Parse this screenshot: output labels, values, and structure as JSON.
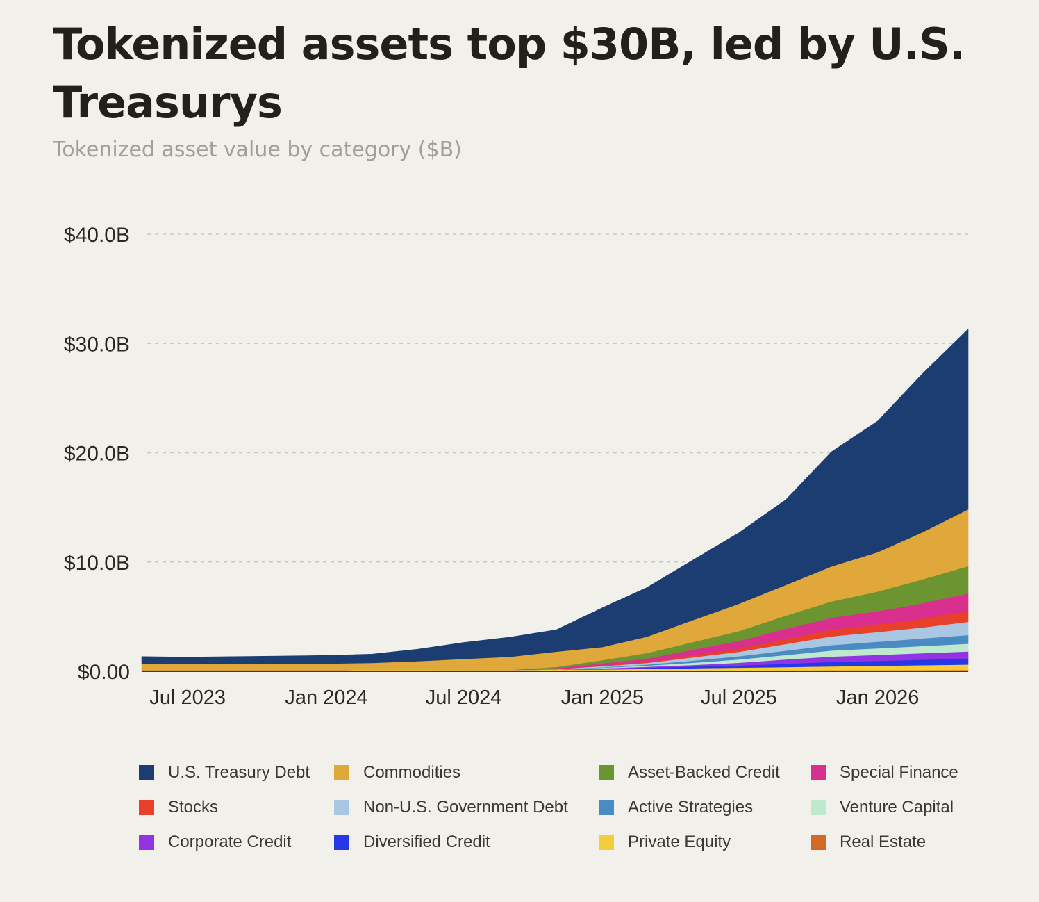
{
  "title": "Tokenized assets top $30B, led by U.S. Treasurys",
  "subtitle": "Tokenized asset value by category ($B)",
  "chart_data": {
    "type": "area",
    "stacked": true,
    "title": "Tokenized assets top $30B, led by U.S. Treasurys",
    "subtitle": "Tokenized asset value by category ($B)",
    "xlabel": "",
    "ylabel": "",
    "y_ticks": [
      "$0.00",
      "$10.0B",
      "$20.0B",
      "$30.0B",
      "$40.0B"
    ],
    "x_ticks": [
      "Jul 2023",
      "Jan 2024",
      "Jul 2024",
      "Jan 2025",
      "Jul 2025",
      "Jan 2026"
    ],
    "ylim": [
      0,
      40
    ],
    "grid": "horizontal dashed",
    "legend_position": "bottom",
    "x": [
      "2023-05",
      "2023-07",
      "2023-09",
      "2023-11",
      "2024-01",
      "2024-03",
      "2024-05",
      "2024-07",
      "2024-09",
      "2024-11",
      "2025-01",
      "2025-03",
      "2025-05",
      "2025-07",
      "2025-09",
      "2025-11",
      "2026-01",
      "2026-03",
      "2026-05"
    ],
    "series": [
      {
        "name": "Real Estate",
        "color": "#d26a25",
        "values": [
          0.05,
          0.05,
          0.05,
          0.05,
          0.05,
          0.06,
          0.06,
          0.06,
          0.06,
          0.07,
          0.07,
          0.07,
          0.08,
          0.08,
          0.09,
          0.1,
          0.1,
          0.11,
          0.12
        ]
      },
      {
        "name": "Private Equity",
        "color": "#f5cd3a",
        "values": [
          0.05,
          0.05,
          0.05,
          0.05,
          0.05,
          0.06,
          0.06,
          0.07,
          0.07,
          0.08,
          0.1,
          0.15,
          0.2,
          0.25,
          0.3,
          0.35,
          0.4,
          0.45,
          0.5
        ]
      },
      {
        "name": "Diversified Credit",
        "color": "#2438e6",
        "values": [
          0,
          0,
          0,
          0,
          0,
          0,
          0,
          0,
          0,
          0,
          0.05,
          0.1,
          0.15,
          0.2,
          0.3,
          0.4,
          0.45,
          0.5,
          0.55
        ]
      },
      {
        "name": "Corporate Credit",
        "color": "#9234e3",
        "values": [
          0,
          0,
          0,
          0,
          0,
          0,
          0,
          0,
          0,
          0,
          0.05,
          0.1,
          0.15,
          0.25,
          0.4,
          0.5,
          0.55,
          0.6,
          0.65
        ]
      },
      {
        "name": "Venture Capital",
        "color": "#bfe9cf",
        "values": [
          0,
          0,
          0,
          0,
          0,
          0,
          0,
          0,
          0,
          0,
          0.05,
          0.1,
          0.2,
          0.3,
          0.4,
          0.55,
          0.6,
          0.65,
          0.7
        ]
      },
      {
        "name": "Active Strategies",
        "color": "#4a8bc4",
        "values": [
          0,
          0,
          0,
          0,
          0,
          0,
          0,
          0,
          0,
          0,
          0.05,
          0.1,
          0.2,
          0.3,
          0.4,
          0.5,
          0.6,
          0.7,
          0.8
        ]
      },
      {
        "name": "Non-U.S. Government Debt",
        "color": "#a9c6e3",
        "values": [
          0,
          0,
          0,
          0,
          0,
          0,
          0,
          0,
          0,
          0.05,
          0.1,
          0.15,
          0.3,
          0.4,
          0.6,
          0.8,
          0.9,
          1.0,
          1.2
        ]
      },
      {
        "name": "Stocks",
        "color": "#e8402b",
        "values": [
          0,
          0,
          0,
          0,
          0,
          0,
          0,
          0,
          0,
          0,
          0.05,
          0.1,
          0.2,
          0.3,
          0.5,
          0.6,
          0.7,
          0.8,
          1.0
        ]
      },
      {
        "name": "Special Finance",
        "color": "#d92f8e",
        "values": [
          0,
          0,
          0,
          0,
          0,
          0,
          0,
          0,
          0,
          0.1,
          0.2,
          0.3,
          0.5,
          0.7,
          0.9,
          1.1,
          1.2,
          1.4,
          1.6
        ]
      },
      {
        "name": "Asset-Backed Credit",
        "color": "#6c9430",
        "values": [
          0,
          0,
          0,
          0,
          0,
          0,
          0,
          0,
          0,
          0.1,
          0.3,
          0.5,
          0.7,
          0.9,
          1.2,
          1.5,
          1.8,
          2.2,
          2.5
        ]
      },
      {
        "name": "Commodities",
        "color": "#e0a83a",
        "values": [
          0.6,
          0.6,
          0.6,
          0.6,
          0.6,
          0.65,
          0.8,
          1.0,
          1.2,
          1.4,
          1.2,
          1.5,
          2.0,
          2.5,
          2.8,
          3.2,
          3.6,
          4.3,
          5.2
        ]
      },
      {
        "name": "U.S. Treasury Debt",
        "color": "#1b3d72",
        "values": [
          0.65,
          0.6,
          0.65,
          0.7,
          0.75,
          0.8,
          1.1,
          1.5,
          1.8,
          2.0,
          3.6,
          4.5,
          5.5,
          6.5,
          7.8,
          10.5,
          12.0,
          14.5,
          16.5
        ]
      }
    ]
  },
  "legend": [
    {
      "name": "U.S. Treasury Debt",
      "color": "#1b3d72"
    },
    {
      "name": "Commodities",
      "color": "#e0a83a"
    },
    {
      "name": "Asset-Backed Credit",
      "color": "#6c9430"
    },
    {
      "name": "Special Finance",
      "color": "#d92f8e"
    },
    {
      "name": "Stocks",
      "color": "#e8402b"
    },
    {
      "name": "Non-U.S. Government Debt",
      "color": "#a9c6e3"
    },
    {
      "name": "Active Strategies",
      "color": "#4a8bc4"
    },
    {
      "name": "Venture Capital",
      "color": "#bfe9cf"
    },
    {
      "name": "Corporate Credit",
      "color": "#9234e3"
    },
    {
      "name": "Diversified Credit",
      "color": "#2438e6"
    },
    {
      "name": "Private Equity",
      "color": "#f5cd3a"
    },
    {
      "name": "Real Estate",
      "color": "#d26a25"
    }
  ]
}
